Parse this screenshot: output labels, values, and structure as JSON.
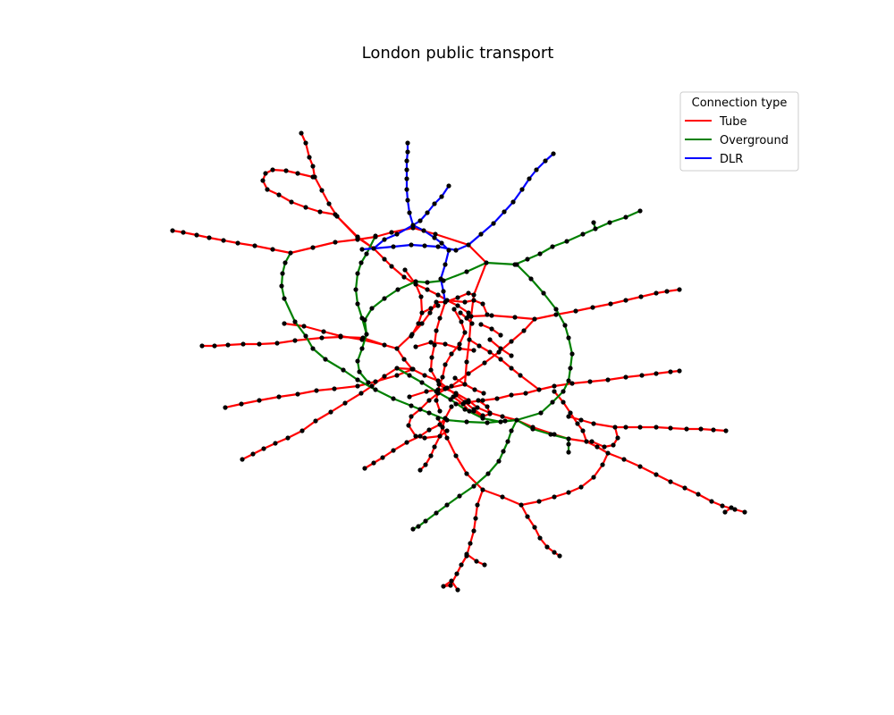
{
  "title": "London public transport",
  "legend": {
    "title": "Connection type",
    "entries": [
      {
        "label": "Tube",
        "color": "#ff0000"
      },
      {
        "label": "Overground",
        "color": "#008000"
      },
      {
        "label": "DLR",
        "color": "#0000ff"
      }
    ]
  },
  "node_color": "#000000"
}
